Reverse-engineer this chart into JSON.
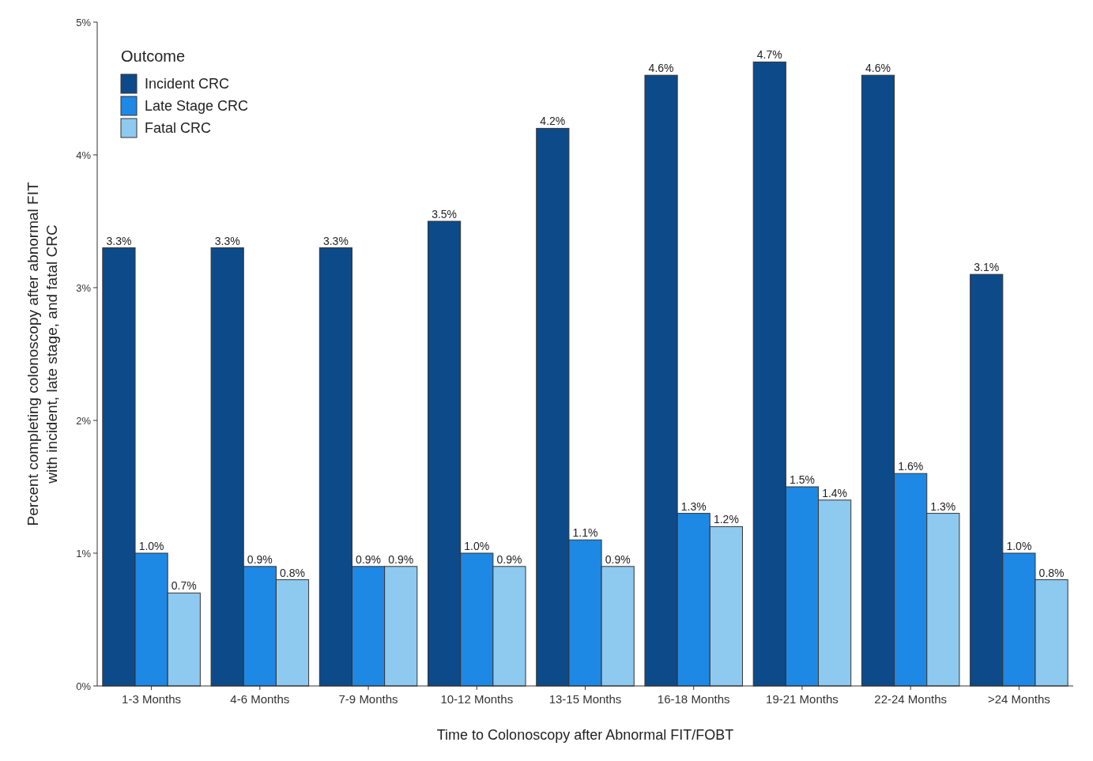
{
  "chart_data": {
    "type": "bar",
    "xlabel": "Time to Colonoscopy after Abnormal FIT/FOBT",
    "ylabel": "Percent completing colonoscopy after abnormal FIT\nwith incident, late stage, and fatal CRC",
    "legend_title": "Outcome",
    "legend": "top left",
    "categories": [
      "1-3 Months",
      "4-6 Months",
      "7-9 Months",
      "10-12 Months",
      "13-15 Months",
      "16-18 Months",
      "19-21 Months",
      "22-24 Months",
      ">24 Months"
    ],
    "ylim": [
      0,
      5
    ],
    "yticks": [
      {
        "value": 0,
        "label": "0%"
      },
      {
        "value": 1,
        "label": "1%"
      },
      {
        "value": 2,
        "label": "2%"
      },
      {
        "value": 3,
        "label": "3%"
      },
      {
        "value": 4,
        "label": "4%"
      },
      {
        "value": 5,
        "label": "5%"
      }
    ],
    "series": [
      {
        "name": "Incident CRC",
        "color": "#0d4a8a",
        "values": [
          3.3,
          3.3,
          3.3,
          3.5,
          4.2,
          4.6,
          4.7,
          4.6,
          3.1
        ],
        "value_labels": [
          "3.3%",
          "3.3%",
          "3.3%",
          "3.5%",
          "4.2%",
          "4.6%",
          "4.7%",
          "4.6%",
          "3.1%"
        ]
      },
      {
        "name": "Late Stage CRC",
        "color": "#1e88e5",
        "values": [
          1.0,
          0.9,
          0.9,
          1.0,
          1.1,
          1.3,
          1.5,
          1.6,
          1.0
        ],
        "value_labels": [
          "1.0%",
          "0.9%",
          "0.9%",
          "1.0%",
          "1.1%",
          "1.3%",
          "1.5%",
          "1.6%",
          "1.0%"
        ]
      },
      {
        "name": "Fatal CRC",
        "color": "#8ecaf0",
        "values": [
          0.7,
          0.8,
          0.9,
          0.9,
          0.9,
          1.2,
          1.4,
          1.3,
          0.8
        ],
        "value_labels": [
          "0.7%",
          "0.8%",
          "0.9%",
          "0.9%",
          "0.9%",
          "1.2%",
          "1.4%",
          "1.3%",
          "0.8%"
        ]
      }
    ]
  }
}
